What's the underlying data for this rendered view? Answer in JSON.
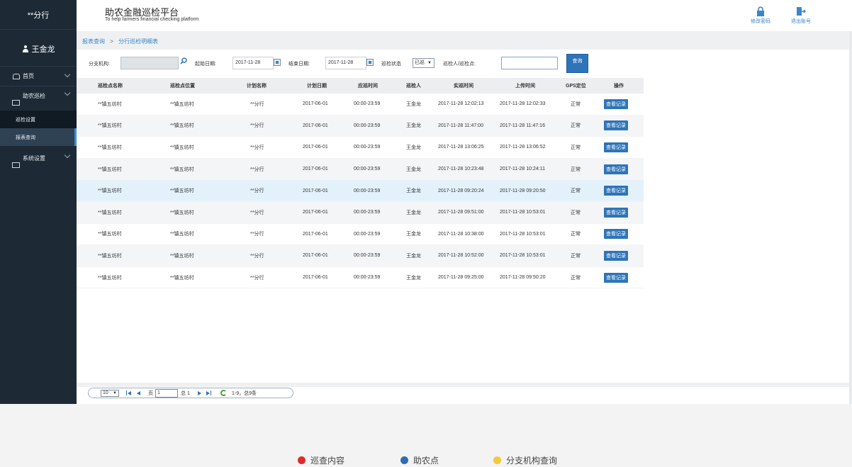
{
  "sidebar": {
    "brand": "**分行",
    "user_name": "王金龙",
    "home_label": "首页",
    "group_patrol": "助农巡检",
    "sub_items": [
      "巡检设置",
      "报表查询"
    ],
    "group_system": "系统设置"
  },
  "header": {
    "title": "助农金融巡检平台",
    "subtitle": "To help farmers financial checking platform",
    "change_password": "修改密码",
    "logout": "退出账号"
  },
  "breadcrumb": {
    "root": "报表查询",
    "separator": ">",
    "current": "分行巡检明细表"
  },
  "filters": {
    "branch_label": "分支机构:",
    "branch_value": "",
    "start_label": "起始日期:",
    "start_value": "2017-11-28",
    "end_label": "结束日期:",
    "end_value": "2017-11-28",
    "status_label": "巡检状态",
    "status_value": "已巡",
    "inspector_label": "巡检人/巡检点:",
    "inspector_value": "",
    "query_button": "查询"
  },
  "table": {
    "columns": [
      "巡检点名称",
      "巡检点位置",
      "计划名称",
      "计划日期",
      "应巡时间",
      "巡检人",
      "实巡时间",
      "上传时间",
      "GPS定位",
      "操作"
    ],
    "action_label": "查看记录",
    "rows": [
      [
        "**镇五坊村",
        "**镇五坊村",
        "**分行",
        "2017-06-01",
        "00:00-23:59",
        "王金龙",
        "2017-11-28 12:02:13",
        "2017-11-28 12:02:33",
        "正常"
      ],
      [
        "**镇五坊村",
        "**镇五坊村",
        "**分行",
        "2017-06-01",
        "00:00-23:59",
        "王金龙",
        "2017-11-28 11:47:00",
        "2017-11-28 11:47:16",
        "正常"
      ],
      [
        "**镇五坊村",
        "**镇五坊村",
        "**分行",
        "2017-06-01",
        "00:00-23:59",
        "王金龙",
        "2017-11-28 13:06:25",
        "2017-11-28 13:06:52",
        "正常"
      ],
      [
        "**镇五坊村",
        "**镇五坊村",
        "**分行",
        "2017-06-01",
        "00:00-23:59",
        "王金龙",
        "2017-11-28 10:23:48",
        "2017-11-28 10:24:11",
        "正常"
      ],
      [
        "**镇五坊村",
        "**镇五坊村",
        "**分行",
        "2017-06-01",
        "00:00-23:59",
        "王金龙",
        "2017-11-28 09:20:24",
        "2017-11-28 09:20:50",
        "正常"
      ],
      [
        "**镇五坊村",
        "**镇五坊村",
        "**分行",
        "2017-06-01",
        "00:00-23:59",
        "王金龙",
        "2017-11-28 09:51:00",
        "2017-11-28 10:53:01",
        "正常"
      ],
      [
        "**镇五坊村",
        "**镇五坊村",
        "**分行",
        "2017-06-01",
        "00:00-23:59",
        "王金龙",
        "2017-11-28 10:38:00",
        "2017-11-28 10:53:01",
        "正常"
      ],
      [
        "**镇五坊村",
        "**镇五坊村",
        "**分行",
        "2017-06-01",
        "00:00-23:59",
        "王金龙",
        "2017-11-28 10:52:00",
        "2017-11-28 10:53:01",
        "正常"
      ],
      [
        "**镇五坊村",
        "**镇五坊村",
        "**分行",
        "2017-06-01",
        "00:00-23:59",
        "王金龙",
        "2017-11-28 09:25:00",
        "2017-11-28 09:50:20",
        "正常"
      ]
    ]
  },
  "pager": {
    "page_size": "10",
    "page_label": "页",
    "page_value": "1",
    "total_label": "总 1",
    "summary": "1-9，总9条"
  },
  "legend": [
    {
      "label": "巡查内容",
      "color": "#e02b2b"
    },
    {
      "label": "助农点",
      "color": "#2e6cb5"
    },
    {
      "label": "分支机构查询",
      "color": "#f3c93a"
    }
  ]
}
